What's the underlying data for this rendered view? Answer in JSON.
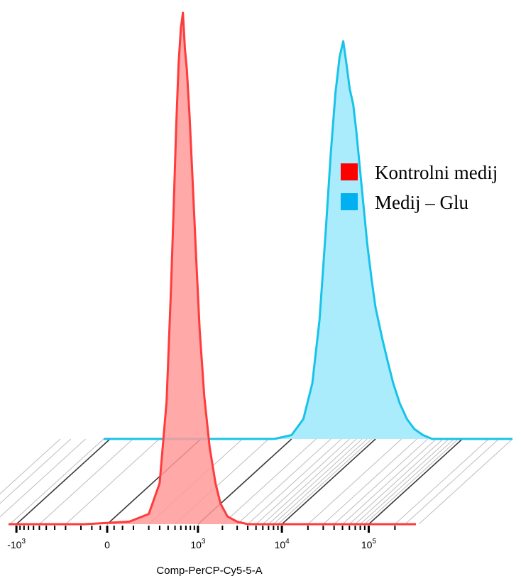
{
  "chart_data": {
    "type": "area",
    "style": "offset overlay histogram (3D stacked)",
    "xlabel": "Comp-PerCP-Cy5-5-A",
    "ylabel": "",
    "x_scale": "biexponential",
    "x_ticks": [
      {
        "value": -1000,
        "base": "-10",
        "exp": "3"
      },
      {
        "value": 0,
        "base": "0",
        "exp": ""
      },
      {
        "value": 1000,
        "base": "10",
        "exp": "3"
      },
      {
        "value": 10000,
        "base": "10",
        "exp": "4"
      },
      {
        "value": 100000,
        "base": "10",
        "exp": "5"
      }
    ],
    "legend": {
      "position": "right",
      "entries": [
        {
          "label": "Kontrolni medij",
          "color": "#ff0000"
        },
        {
          "label": "Medij – Glu",
          "color": "#00b0f0"
        }
      ]
    },
    "series": [
      {
        "name": "Kontrolni medij",
        "color": "#ff3b3b",
        "fill": "#ff9a9a",
        "layer": "front",
        "points": [
          [
            -80,
            0
          ],
          [
            80,
            0.5
          ],
          [
            200,
            2
          ],
          [
            300,
            8
          ],
          [
            380,
            24
          ],
          [
            440,
            46
          ],
          [
            480,
            62
          ],
          [
            520,
            78
          ],
          [
            560,
            90
          ],
          [
            600,
            97
          ],
          [
            640,
            100
          ],
          [
            680,
            93
          ],
          [
            720,
            89
          ],
          [
            780,
            80
          ],
          [
            850,
            68
          ],
          [
            950,
            52
          ],
          [
            1050,
            38
          ],
          [
            1200,
            25
          ],
          [
            1400,
            15
          ],
          [
            1650,
            8
          ],
          [
            1900,
            4
          ],
          [
            2300,
            1.5
          ],
          [
            3000,
            0.5
          ],
          [
            4000,
            0
          ]
        ]
      },
      {
        "name": "Medij – Glu",
        "color": "#17c3ea",
        "fill": "#9be7fb",
        "layer": "back",
        "points": [
          [
            600,
            0
          ],
          [
            1000,
            1
          ],
          [
            1400,
            5
          ],
          [
            1800,
            14
          ],
          [
            2200,
            30
          ],
          [
            2600,
            52
          ],
          [
            3000,
            72
          ],
          [
            3400,
            87
          ],
          [
            3800,
            96
          ],
          [
            4200,
            100
          ],
          [
            4600,
            94
          ],
          [
            5000,
            88
          ],
          [
            5500,
            84
          ],
          [
            6000,
            77
          ],
          [
            7000,
            62
          ],
          [
            8000,
            49
          ],
          [
            9000,
            40
          ],
          [
            10000,
            33
          ],
          [
            12000,
            25
          ],
          [
            14000,
            19
          ],
          [
            16000,
            14
          ],
          [
            19000,
            9
          ],
          [
            23000,
            5
          ],
          [
            28000,
            2.5
          ],
          [
            35000,
            1
          ],
          [
            45000,
            0
          ]
        ]
      }
    ]
  }
}
